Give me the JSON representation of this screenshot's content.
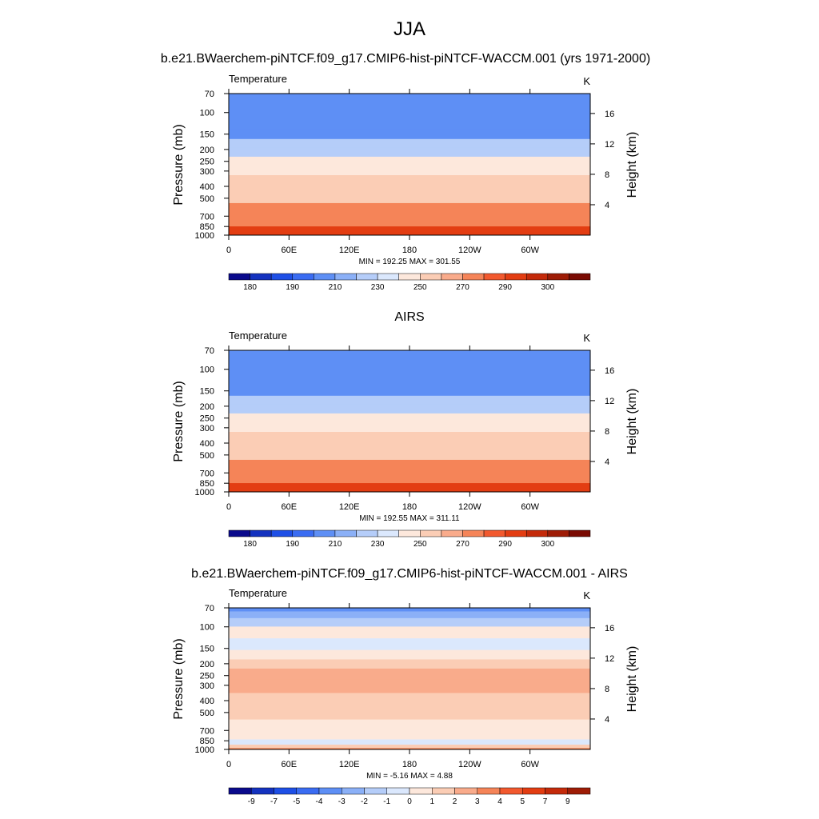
{
  "figure": {
    "title": "JJA"
  },
  "chart_data": [
    {
      "type": "heatmap",
      "title": "b.e21.BWaerchem-piNTCF.f09_g17.CMIP6-hist-piNTCF-WACCM.001 (yrs 1971-2000)",
      "variable": "Temperature",
      "units": "K",
      "ylabel": "Pressure (mb)",
      "ylabel_right": "Height (km)",
      "x_ticks": [
        "0",
        "60E",
        "120E",
        "180",
        "120W",
        "60W"
      ],
      "y_ticks": [
        "70",
        "100",
        "150",
        "200",
        "250",
        "300",
        "400",
        "500",
        "700",
        "850",
        "1000"
      ],
      "y_ticks_right": [
        "16",
        "12",
        "8",
        "4"
      ],
      "stats": "MIN = 192.25  MAX = 301.55",
      "colorbar_labels": [
        "180",
        "190",
        "210",
        "230",
        "250",
        "270",
        "290",
        "300"
      ],
      "colorbar_colors": [
        "#0a0a8c",
        "#1432bf",
        "#1e4fe6",
        "#3a6cf2",
        "#5e8ff5",
        "#8bb0f7",
        "#b5cdf9",
        "#dbe8fd",
        "#fde8dc",
        "#fbcdb5",
        "#f9ab8b",
        "#f58458",
        "#f2592e",
        "#e33d12",
        "#c42a0a",
        "#9e1c06",
        "#7a0b03"
      ],
      "ylim": [
        1000,
        70
      ],
      "rows": [
        {
          "p": 70,
          "t": 192
        },
        {
          "p": 100,
          "t": 195
        },
        {
          "p": 125,
          "t": 200
        },
        {
          "p": 150,
          "t": 207
        },
        {
          "p": 180,
          "t": 214
        },
        {
          "p": 210,
          "t": 223
        },
        {
          "p": 250,
          "t": 232
        },
        {
          "p": 300,
          "t": 243
        },
        {
          "p": 350,
          "t": 252
        },
        {
          "p": 420,
          "t": 260
        },
        {
          "p": 500,
          "t": 266
        },
        {
          "p": 600,
          "t": 273
        },
        {
          "p": 700,
          "t": 280
        },
        {
          "p": 800,
          "t": 286
        },
        {
          "p": 900,
          "t": 291
        },
        {
          "p": 1000,
          "t": 296
        }
      ]
    },
    {
      "type": "heatmap",
      "title": "AIRS",
      "variable": "Temperature",
      "units": "K",
      "ylabel": "Pressure (mb)",
      "ylabel_right": "Height (km)",
      "x_ticks": [
        "0",
        "60E",
        "120E",
        "180",
        "120W",
        "60W"
      ],
      "y_ticks": [
        "70",
        "100",
        "150",
        "200",
        "250",
        "300",
        "400",
        "500",
        "700",
        "850",
        "1000"
      ],
      "y_ticks_right": [
        "16",
        "12",
        "8",
        "4"
      ],
      "stats": "MIN = 192.55  MAX = 311.11",
      "colorbar_labels": [
        "180",
        "190",
        "210",
        "230",
        "250",
        "270",
        "290",
        "300"
      ],
      "colorbar_colors": [
        "#0a0a8c",
        "#1432bf",
        "#1e4fe6",
        "#3a6cf2",
        "#5e8ff5",
        "#8bb0f7",
        "#b5cdf9",
        "#dbe8fd",
        "#fde8dc",
        "#fbcdb5",
        "#f9ab8b",
        "#f58458",
        "#f2592e",
        "#e33d12",
        "#c42a0a",
        "#9e1c06",
        "#7a0b03"
      ],
      "ylim": [
        1000,
        70
      ],
      "rows": [
        {
          "p": 70,
          "t": 193
        },
        {
          "p": 100,
          "t": 195
        },
        {
          "p": 125,
          "t": 201
        },
        {
          "p": 150,
          "t": 208
        },
        {
          "p": 180,
          "t": 215
        },
        {
          "p": 210,
          "t": 224
        },
        {
          "p": 250,
          "t": 233
        },
        {
          "p": 300,
          "t": 243
        },
        {
          "p": 350,
          "t": 252
        },
        {
          "p": 420,
          "t": 260
        },
        {
          "p": 500,
          "t": 266
        },
        {
          "p": 600,
          "t": 273
        },
        {
          "p": 700,
          "t": 280
        },
        {
          "p": 800,
          "t": 286
        },
        {
          "p": 900,
          "t": 291
        },
        {
          "p": 1000,
          "t": 296
        }
      ]
    },
    {
      "type": "heatmap",
      "title": "b.e21.BWaerchem-piNTCF.f09_g17.CMIP6-hist-piNTCF-WACCM.001 - AIRS",
      "variable": "Temperature",
      "units": "K",
      "ylabel": "Pressure (mb)",
      "ylabel_right": "Height (km)",
      "x_ticks": [
        "0",
        "60E",
        "120E",
        "180",
        "120W",
        "60W"
      ],
      "y_ticks": [
        "70",
        "100",
        "150",
        "200",
        "250",
        "300",
        "400",
        "500",
        "700",
        "850",
        "1000"
      ],
      "y_ticks_right": [
        "16",
        "12",
        "8",
        "4"
      ],
      "stats": "MIN =  -5.16  MAX =   4.88",
      "colorbar_labels": [
        "-9",
        "-7",
        "-5",
        "-4",
        "-3",
        "-2",
        "-1",
        "0",
        "1",
        "2",
        "3",
        "4",
        "5",
        "7",
        "9"
      ],
      "colorbar_colors": [
        "#0a0a8c",
        "#1432bf",
        "#1e4fe6",
        "#3a6cf2",
        "#5e8ff5",
        "#8bb0f7",
        "#b5cdf9",
        "#dbe8fd",
        "#fde8dc",
        "#fbcdb5",
        "#f9ab8b",
        "#f58458",
        "#f2592e",
        "#e33d12",
        "#c42a0a",
        "#9e1c06"
      ],
      "ylim": [
        1000,
        70
      ],
      "rows": [
        {
          "p": 70,
          "t": -3.5
        },
        {
          "p": 80,
          "t": -2.5
        },
        {
          "p": 90,
          "t": -1.5
        },
        {
          "p": 110,
          "t": 0.5
        },
        {
          "p": 140,
          "t": -0.5
        },
        {
          "p": 170,
          "t": 0.5
        },
        {
          "p": 200,
          "t": 1.5
        },
        {
          "p": 240,
          "t": 2.5
        },
        {
          "p": 300,
          "t": 2.0
        },
        {
          "p": 400,
          "t": 1.5
        },
        {
          "p": 500,
          "t": 1.0
        },
        {
          "p": 650,
          "t": 0.5
        },
        {
          "p": 780,
          "t": 0.5
        },
        {
          "p": 880,
          "t": -0.5
        },
        {
          "p": 950,
          "t": 1.5
        },
        {
          "p": 1000,
          "t": 3.5
        }
      ]
    }
  ]
}
